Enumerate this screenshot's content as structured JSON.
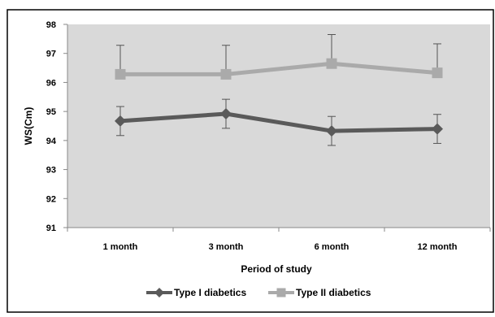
{
  "chart_data": {
    "type": "line",
    "title": "",
    "xlabel": "Period of study",
    "ylabel": "WS(Cm)",
    "categories": [
      "1 month",
      "3 month",
      "6 month",
      "12 month"
    ],
    "ylim": [
      91,
      98
    ],
    "yticks": [
      91,
      92,
      93,
      94,
      95,
      96,
      97,
      98
    ],
    "grid": false,
    "legend_position": "bottom",
    "series": [
      {
        "name": "Type I diabetics",
        "marker": "diamond",
        "color": "#5a5a5a",
        "values": [
          94.67,
          94.92,
          94.33,
          94.4
        ],
        "error_upper": [
          0.5,
          0.5,
          0.5,
          0.5
        ],
        "error_lower": [
          0.5,
          0.5,
          0.5,
          0.5
        ]
      },
      {
        "name": "Type II diabetics",
        "marker": "square",
        "color": "#aaaaaa",
        "values": [
          96.28,
          96.28,
          96.65,
          96.33
        ],
        "error_upper": [
          1.0,
          1.0,
          1.0,
          1.0
        ],
        "error_lower": [
          0,
          0,
          0,
          0
        ]
      }
    ]
  }
}
